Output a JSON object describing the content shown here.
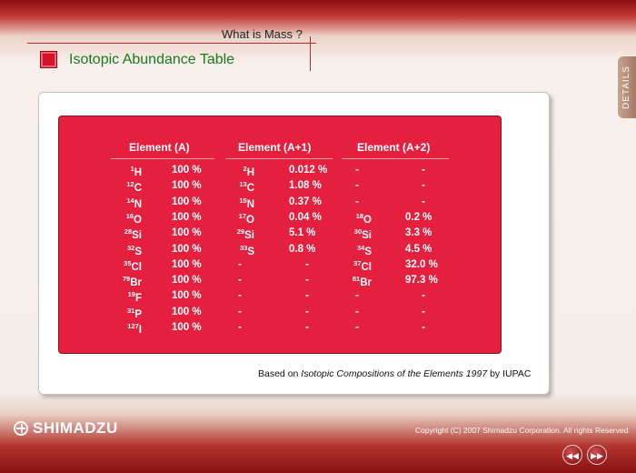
{
  "header": {
    "top_title": "What is Mass ?",
    "section_title": "Isotopic Abundance Table"
  },
  "side_tab": {
    "label": "DETAILS"
  },
  "table": {
    "headers": [
      "Element (A)",
      "Element (A+1)",
      "Element (A+2)"
    ],
    "rows": [
      {
        "a_mass": "1",
        "a_sym": "H",
        "a_pct": "100 %",
        "b_mass": "2",
        "b_sym": "H",
        "b_pct": "0.012 %",
        "c_mass": "",
        "c_sym": "-",
        "c_pct": "-"
      },
      {
        "a_mass": "12",
        "a_sym": "C",
        "a_pct": "100 %",
        "b_mass": "13",
        "b_sym": "C",
        "b_pct": "1.08 %",
        "c_mass": "",
        "c_sym": "-",
        "c_pct": "-"
      },
      {
        "a_mass": "14",
        "a_sym": "N",
        "a_pct": "100 %",
        "b_mass": "15",
        "b_sym": "N",
        "b_pct": "0.37 %",
        "c_mass": "",
        "c_sym": "-",
        "c_pct": "-"
      },
      {
        "a_mass": "16",
        "a_sym": "O",
        "a_pct": "100 %",
        "b_mass": "17",
        "b_sym": "O",
        "b_pct": "0.04 %",
        "c_mass": "18",
        "c_sym": "O",
        "c_pct": "0.2 %"
      },
      {
        "a_mass": "28",
        "a_sym": "Si",
        "a_pct": "100 %",
        "b_mass": "29",
        "b_sym": "Si",
        "b_pct": "5.1 %",
        "c_mass": "30",
        "c_sym": "Si",
        "c_pct": "3.3 %"
      },
      {
        "a_mass": "32",
        "a_sym": "S",
        "a_pct": "100 %",
        "b_mass": "33",
        "b_sym": "S",
        "b_pct": "0.8 %",
        "c_mass": "34",
        "c_sym": "S",
        "c_pct": "4.5 %"
      },
      {
        "a_mass": "35",
        "a_sym": "Cl",
        "a_pct": "100 %",
        "b_mass": "",
        "b_sym": "-",
        "b_pct": "-",
        "c_mass": "37",
        "c_sym": "Cl",
        "c_pct": "32.0 %"
      },
      {
        "a_mass": "79",
        "a_sym": "Br",
        "a_pct": "100 %",
        "b_mass": "",
        "b_sym": "-",
        "b_pct": "-",
        "c_mass": "81",
        "c_sym": "Br",
        "c_pct": "97.3 %"
      },
      {
        "a_mass": "19",
        "a_sym": "F",
        "a_pct": "100 %",
        "b_mass": "",
        "b_sym": "-",
        "b_pct": "-",
        "c_mass": "",
        "c_sym": "-",
        "c_pct": "-"
      },
      {
        "a_mass": "31",
        "a_sym": "P",
        "a_pct": "100 %",
        "b_mass": "",
        "b_sym": "-",
        "b_pct": "-",
        "c_mass": "",
        "c_sym": "-",
        "c_pct": "-"
      },
      {
        "a_mass": "127",
        "a_sym": "I",
        "a_pct": "100 %",
        "b_mass": "",
        "b_sym": "-",
        "b_pct": "-",
        "c_mass": "",
        "c_sym": "-",
        "c_pct": "-"
      }
    ]
  },
  "footnote": {
    "prefix": "Based on ",
    "title": "Isotopic Compositions of the Elements 1997",
    "suffix": " by IUPAC"
  },
  "footer": {
    "logo_text": "SHIMADZU",
    "copyright": "Copyright (C) 2007 Shimadzu Corporation. All rights  Reserved"
  },
  "nav": {
    "prev_icon": "rewind-icon",
    "next_icon": "fast-forward-icon"
  },
  "colors": {
    "panel": "#e5203e",
    "accent": "#d3132b",
    "subtitle": "#1b7a1b"
  }
}
